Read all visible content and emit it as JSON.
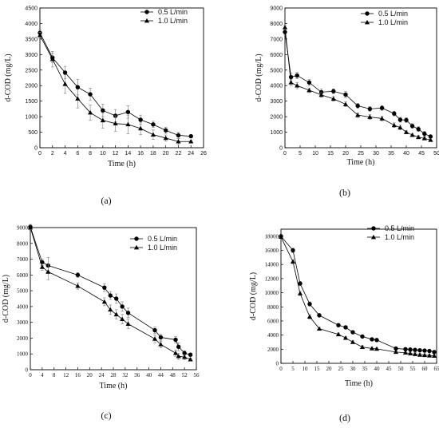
{
  "chart_data": [
    {
      "panel_label": "(a)",
      "type": "line",
      "xlabel": "Time (h)",
      "ylabel": "d-COD (mg/L)",
      "xlim": [
        0,
        26
      ],
      "ylim": [
        0,
        4500
      ],
      "xticks": [
        0,
        2,
        4,
        6,
        8,
        10,
        12,
        14,
        16,
        18,
        20,
        22,
        24,
        26
      ],
      "yticks": [
        0,
        500,
        1000,
        1500,
        2000,
        2500,
        3000,
        3500,
        4000,
        4500
      ],
      "legend_position": "top-right",
      "series": [
        {
          "name": "0.5 L/min",
          "marker": "circle",
          "x": [
            0,
            2,
            4,
            6,
            8,
            10,
            12,
            14,
            16,
            18,
            20,
            22,
            24
          ],
          "y": [
            3700,
            2900,
            2420,
            1950,
            1720,
            1200,
            1030,
            1150,
            900,
            750,
            560,
            400,
            370
          ],
          "err": [
            100,
            150,
            200,
            250,
            200,
            200,
            200,
            200,
            150,
            100,
            100,
            100,
            50
          ]
        },
        {
          "name": "1.0 L/min",
          "marker": "triangle",
          "x": [
            0,
            2,
            4,
            6,
            8,
            10,
            12,
            14,
            16,
            18,
            20,
            22,
            24
          ],
          "y": [
            3620,
            2850,
            2050,
            1580,
            1130,
            880,
            780,
            750,
            620,
            420,
            310,
            200,
            200
          ],
          "err": [
            100,
            250,
            300,
            300,
            250,
            250,
            250,
            300,
            200,
            150,
            100,
            100,
            50
          ]
        }
      ]
    },
    {
      "panel_label": "(b)",
      "type": "line",
      "xlabel": "Time (h)",
      "ylabel": "d-COD (mg/L)",
      "xlim": [
        0,
        50
      ],
      "ylim": [
        0,
        9000
      ],
      "xticks": [
        0,
        5,
        10,
        15,
        20,
        25,
        30,
        35,
        40,
        45,
        50
      ],
      "yticks": [
        0,
        1000,
        2000,
        3000,
        4000,
        5000,
        6000,
        7000,
        8000,
        9000
      ],
      "legend_position": "top-right",
      "series": [
        {
          "name": "0.5 L/min",
          "marker": "circle",
          "x": [
            0,
            2,
            4,
            8,
            12,
            16,
            20,
            24,
            28,
            32,
            36,
            38,
            40,
            42,
            44,
            46,
            48
          ],
          "y": [
            7450,
            4550,
            4650,
            4200,
            3580,
            3640,
            3420,
            2700,
            2500,
            2560,
            2200,
            1800,
            1780,
            1400,
            1200,
            900,
            720
          ],
          "err": [
            150,
            250,
            200,
            200,
            200,
            150,
            200,
            150,
            150,
            150,
            150,
            150,
            150,
            150,
            150,
            150,
            100
          ]
        },
        {
          "name": "1.0 L/min",
          "marker": "triangle",
          "x": [
            0,
            2,
            4,
            8,
            12,
            16,
            20,
            24,
            28,
            32,
            36,
            38,
            40,
            42,
            44,
            46,
            48
          ],
          "y": [
            7750,
            4200,
            4000,
            3700,
            3400,
            3150,
            2800,
            2100,
            1980,
            1880,
            1450,
            1300,
            1000,
            820,
            680,
            600,
            500
          ],
          "err": [
            150,
            200,
            200,
            150,
            150,
            150,
            150,
            150,
            150,
            150,
            150,
            150,
            100,
            100,
            100,
            100,
            100
          ]
        }
      ]
    },
    {
      "panel_label": "(c)",
      "type": "line",
      "xlabel": "Time (h)",
      "ylabel": "d-COD (mg/L)",
      "xlim": [
        0,
        56
      ],
      "ylim": [
        0,
        9000
      ],
      "xticks": [
        0,
        4,
        8,
        12,
        16,
        20,
        24,
        28,
        32,
        36,
        40,
        44,
        48,
        52,
        56
      ],
      "yticks": [
        0,
        1000,
        2000,
        3000,
        4000,
        5000,
        6000,
        7000,
        8000,
        9000
      ],
      "legend_position": "top-right",
      "series": [
        {
          "name": "0.5 L/min",
          "marker": "circle",
          "x": [
            0,
            4,
            6,
            16,
            25,
            27,
            29,
            31,
            33,
            42,
            44,
            49,
            50,
            52,
            54
          ],
          "y": [
            9050,
            6800,
            6600,
            6000,
            5200,
            4700,
            4500,
            4000,
            3600,
            2500,
            2050,
            1900,
            1450,
            1050,
            950
          ],
          "err": [
            150,
            200,
            500,
            150,
            250,
            250,
            300,
            300,
            300,
            200,
            200,
            200,
            250,
            150,
            100
          ]
        },
        {
          "name": "1.0 L/min",
          "marker": "triangle",
          "x": [
            0,
            4,
            6,
            16,
            25,
            27,
            29,
            31,
            33,
            42,
            44,
            49,
            50,
            52,
            54
          ],
          "y": [
            9000,
            6500,
            6200,
            5300,
            4300,
            3800,
            3500,
            3200,
            2900,
            1950,
            1600,
            1050,
            850,
            800,
            650
          ],
          "err": [
            150,
            200,
            500,
            200,
            250,
            300,
            300,
            300,
            300,
            250,
            200,
            200,
            200,
            150,
            100
          ]
        }
      ]
    },
    {
      "panel_label": "(d)",
      "type": "line",
      "xlabel": "Time (h)",
      "ylabel": "d-COD (mg/L)",
      "xlim": [
        0,
        65
      ],
      "ylim": [
        0,
        19000
      ],
      "xticks": [
        0,
        5,
        10,
        15,
        20,
        25,
        30,
        35,
        40,
        45,
        50,
        55,
        60,
        65
      ],
      "yticks": [
        0,
        2000,
        4000,
        6000,
        8000,
        10000,
        12000,
        14000,
        16000,
        18000
      ],
      "legend_position": "top-right",
      "series": [
        {
          "name": "0.5 L/min",
          "marker": "circle",
          "x": [
            0,
            5,
            8,
            12,
            16,
            24,
            27,
            30,
            34,
            38,
            40,
            48,
            52,
            54,
            56,
            58,
            60,
            62,
            64
          ],
          "y": [
            18000,
            16000,
            11300,
            8400,
            6800,
            5400,
            5100,
            4400,
            3800,
            3400,
            3300,
            2100,
            2000,
            1950,
            1900,
            1850,
            1800,
            1750,
            1600
          ],
          "err": [
            200,
            300,
            300,
            300,
            200,
            200,
            200,
            200,
            200,
            200,
            200,
            200,
            200,
            200,
            200,
            200,
            200,
            200,
            200
          ]
        },
        {
          "name": "1.0 L/min",
          "marker": "triangle",
          "x": [
            0,
            5,
            8,
            12,
            16,
            24,
            27,
            30,
            34,
            38,
            40,
            48,
            52,
            54,
            56,
            58,
            60,
            62,
            64
          ],
          "y": [
            17900,
            14400,
            9900,
            6600,
            4900,
            4100,
            3600,
            3000,
            2300,
            2100,
            2050,
            1600,
            1500,
            1400,
            1300,
            1200,
            1150,
            1100,
            1050
          ],
          "err": [
            200,
            300,
            300,
            300,
            200,
            200,
            200,
            200,
            200,
            200,
            200,
            200,
            200,
            200,
            200,
            200,
            200,
            200,
            200
          ]
        }
      ]
    }
  ]
}
